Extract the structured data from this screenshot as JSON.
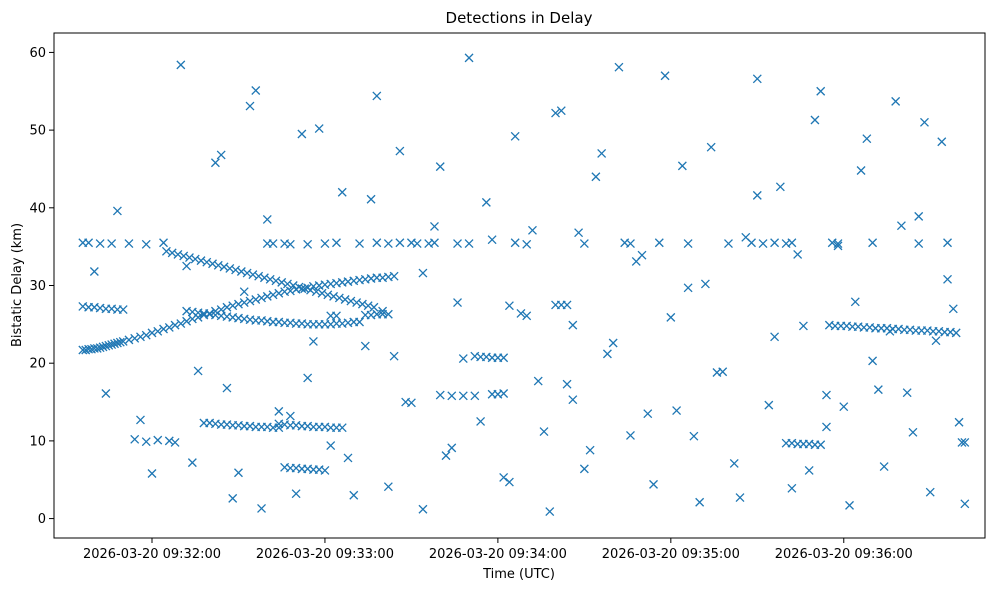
{
  "chart_data": {
    "type": "scatter",
    "title": "Detections in Delay",
    "xlabel": "Time (UTC)",
    "ylabel": "Bistatic Delay (km)",
    "x_ticks": [
      "2026-03-20 09:32:00",
      "2026-03-20 09:33:00",
      "2026-03-20 09:34:00",
      "2026-03-20 09:35:00",
      "2026-03-20 09:36:00"
    ],
    "y_ticks": [
      0,
      10,
      20,
      30,
      40,
      50,
      60
    ],
    "xlim": [
      "2026-03-20 09:31:26",
      "2026-03-20 09:36:49"
    ],
    "ylim": [
      -2.5,
      62.5
    ],
    "marker": "x",
    "color": "#1f77b4",
    "grid": false,
    "series": [
      {
        "name": "",
        "x": [
          "09:31:36",
          "09:31:37",
          "09:31:38",
          "09:31:39",
          "09:31:40",
          "09:31:41",
          "09:31:42",
          "09:31:43",
          "09:31:44",
          "09:31:45",
          "09:31:46",
          "09:31:47",
          "09:31:48",
          "09:31:49",
          "09:31:50",
          "09:31:52",
          "09:31:54",
          "09:31:56",
          "09:31:58",
          "09:32:00",
          "09:32:02",
          "09:32:04",
          "09:32:06",
          "09:32:08",
          "09:32:10",
          "09:32:12",
          "09:32:14",
          "09:32:16",
          "09:32:18",
          "09:32:20",
          "09:32:22",
          "09:32:24",
          "09:32:26",
          "09:32:28",
          "09:32:30",
          "09:32:32",
          "09:32:34",
          "09:32:36",
          "09:32:38",
          "09:32:40",
          "09:32:42",
          "09:32:44",
          "09:32:46",
          "09:32:48",
          "09:32:50",
          "09:32:52",
          "09:32:54",
          "09:32:56",
          "09:32:58",
          "09:33:00",
          "09:33:02",
          "09:33:04",
          "09:33:06",
          "09:33:08",
          "09:33:10",
          "09:33:12",
          "09:33:14",
          "09:33:16",
          "09:33:18",
          "09:33:20",
          "09:33:22",
          "09:33:24",
          "09:31:36",
          "09:31:38",
          "09:31:40",
          "09:31:42",
          "09:31:44",
          "09:31:46",
          "09:31:48",
          "09:31:50",
          "09:32:05",
          "09:32:07",
          "09:32:09",
          "09:32:11",
          "09:32:13",
          "09:32:15",
          "09:32:17",
          "09:32:19",
          "09:32:21",
          "09:32:23",
          "09:32:25",
          "09:32:27",
          "09:32:29",
          "09:32:31",
          "09:32:33",
          "09:32:35",
          "09:32:37",
          "09:32:39",
          "09:32:41",
          "09:32:43",
          "09:32:45",
          "09:32:47",
          "09:32:49",
          "09:32:51",
          "09:32:53",
          "09:32:55",
          "09:32:57",
          "09:32:59",
          "09:33:01",
          "09:33:03",
          "09:33:05",
          "09:33:07",
          "09:33:09",
          "09:33:11",
          "09:33:13",
          "09:33:15",
          "09:33:17",
          "09:32:12",
          "09:32:14",
          "09:32:16",
          "09:32:18",
          "09:32:20",
          "09:32:22",
          "09:32:24",
          "09:32:26",
          "09:32:28",
          "09:32:30",
          "09:32:32",
          "09:32:34",
          "09:32:36",
          "09:32:38",
          "09:32:40",
          "09:32:42",
          "09:32:44",
          "09:32:46",
          "09:32:48",
          "09:32:50",
          "09:32:52",
          "09:32:54",
          "09:32:56",
          "09:32:58",
          "09:33:00",
          "09:33:02",
          "09:33:04",
          "09:33:06",
          "09:33:08",
          "09:33:10",
          "09:33:12",
          "09:32:44",
          "09:32:46",
          "09:32:48",
          "09:32:50",
          "09:32:52",
          "09:32:54",
          "09:32:56",
          "09:32:58",
          "09:33:00",
          "09:33:02",
          "09:33:04",
          "09:33:06",
          "09:32:20",
          "09:32:22",
          "09:32:24",
          "09:32:26",
          "09:32:28",
          "09:32:30",
          "09:32:32",
          "09:32:34",
          "09:32:36",
          "09:32:38",
          "09:32:40",
          "09:32:42",
          "09:32:44",
          "09:32:46",
          "09:32:48",
          "09:32:50",
          "09:32:52",
          "09:32:54",
          "09:32:56",
          "09:32:58",
          "09:33:00",
          "09:33:02",
          "09:33:04",
          "09:33:14",
          "09:33:16",
          "09:33:18",
          "09:33:20",
          "09:33:22",
          "09:33:24",
          "09:33:52",
          "09:33:54",
          "09:33:56",
          "09:33:58",
          "09:34:00",
          "09:34:02",
          "09:34:04",
          "09:34:20",
          "09:34:22",
          "09:34:24",
          "09:34:26",
          "09:35:55",
          "09:35:57",
          "09:35:59",
          "09:36:01",
          "09:36:03",
          "09:36:05",
          "09:36:07",
          "09:36:09",
          "09:36:11",
          "09:36:13",
          "09:36:15",
          "09:36:17",
          "09:36:19",
          "09:36:21",
          "09:36:23",
          "09:36:25",
          "09:36:27",
          "09:36:29",
          "09:36:31",
          "09:36:33",
          "09:36:35",
          "09:36:37",
          "09:36:39",
          "09:36:41",
          "09:35:40",
          "09:35:42",
          "09:35:44",
          "09:35:46",
          "09:35:48",
          "09:35:50",
          "09:35:52",
          "09:35:54",
          "09:33:40",
          "09:33:44",
          "09:33:48",
          "09:33:52",
          "09:33:58",
          "09:34:00",
          "09:34:02",
          "09:34:06",
          "09:31:36",
          "09:31:38",
          "09:31:42",
          "09:31:46",
          "09:31:52",
          "09:31:58",
          "09:32:04",
          "09:32:40",
          "09:32:42",
          "09:32:46",
          "09:32:48",
          "09:32:54",
          "09:33:00",
          "09:33:04",
          "09:33:12",
          "09:33:18",
          "09:33:22",
          "09:33:26",
          "09:33:30",
          "09:33:32",
          "09:33:36",
          "09:33:38",
          "09:33:46",
          "09:33:50",
          "09:34:10",
          "09:34:30",
          "09:34:44",
          "09:34:46",
          "09:34:56",
          "09:35:06",
          "09:35:20",
          "09:35:28",
          "09:35:32",
          "09:35:36",
          "09:35:40",
          "09:35:42",
          "09:35:56",
          "09:35:58",
          "09:36:10",
          "09:36:26",
          "09:36:36",
          "09:36:42",
          "09:31:54",
          "09:31:58",
          "09:32:02",
          "09:32:06",
          "09:32:08",
          "09:32:10",
          "09:32:14",
          "09:32:18",
          "09:32:22",
          "09:32:26",
          "09:32:30",
          "09:32:34",
          "09:32:38",
          "09:32:44",
          "09:32:50",
          "09:32:54",
          "09:32:58",
          "09:33:02",
          "09:33:06",
          "09:33:10",
          "09:33:14",
          "09:33:18",
          "09:33:22",
          "09:33:26",
          "09:33:30",
          "09:33:34",
          "09:33:38",
          "09:33:42",
          "09:33:46",
          "09:33:50",
          "09:33:54",
          "09:33:58",
          "09:34:02",
          "09:34:06",
          "09:34:10",
          "09:34:14",
          "09:34:18",
          "09:34:22",
          "09:34:26",
          "09:34:30",
          "09:34:34",
          "09:34:38",
          "09:34:42",
          "09:34:46",
          "09:34:50",
          "09:34:54",
          "09:34:58",
          "09:35:02",
          "09:35:06",
          "09:35:10",
          "09:35:14",
          "09:35:18",
          "09:35:22",
          "09:35:26",
          "09:35:30",
          "09:35:34",
          "09:35:38",
          "09:35:42",
          "09:35:46",
          "09:35:50",
          "09:35:54",
          "09:35:58",
          "09:36:02",
          "09:36:06",
          "09:36:10",
          "09:36:14",
          "09:36:18",
          "09:36:22",
          "09:36:26",
          "09:36:30",
          "09:36:34",
          "09:36:38",
          "09:36:42",
          "09:31:40",
          "09:31:44",
          "09:31:48",
          "09:31:56",
          "09:32:00",
          "09:32:12",
          "09:32:16",
          "09:32:24",
          "09:32:28",
          "09:32:32",
          "09:32:36",
          "09:32:40",
          "09:32:48",
          "09:32:52",
          "09:32:56",
          "09:33:08",
          "09:33:16",
          "09:33:20",
          "09:33:28",
          "09:33:34",
          "09:33:40",
          "09:33:44",
          "09:33:48",
          "09:33:56",
          "09:34:04",
          "09:34:08",
          "09:34:12",
          "09:34:16",
          "09:34:20",
          "09:34:24",
          "09:34:28",
          "09:34:32",
          "09:34:36",
          "09:34:40",
          "09:34:48",
          "09:34:52",
          "09:35:00",
          "09:35:04",
          "09:35:08",
          "09:35:12",
          "09:35:16",
          "09:35:24",
          "09:35:30",
          "09:35:36",
          "09:35:44",
          "09:35:48",
          "09:35:52",
          "09:36:00",
          "09:36:04",
          "09:36:08",
          "09:36:12",
          "09:36:16",
          "09:36:20",
          "09:36:24",
          "09:36:28",
          "09:36:32",
          "09:36:36",
          "09:36:40"
        ],
        "y": [
          21.7,
          21.7,
          21.8,
          21.8,
          21.9,
          21.9,
          22.0,
          22.1,
          22.2,
          22.3,
          22.4,
          22.5,
          22.6,
          22.7,
          22.8,
          23.0,
          23.2,
          23.4,
          23.6,
          23.9,
          24.1,
          24.4,
          24.6,
          24.9,
          25.1,
          25.4,
          25.7,
          25.9,
          26.2,
          26.4,
          26.7,
          26.9,
          27.2,
          27.4,
          27.6,
          27.8,
          28.0,
          28.2,
          28.4,
          28.6,
          28.8,
          29.0,
          29.2,
          29.3,
          29.5,
          29.6,
          29.7,
          29.9,
          30.0,
          30.1,
          30.2,
          30.3,
          30.4,
          30.5,
          30.6,
          30.7,
          30.8,
          30.9,
          31.0,
          31.0,
          31.1,
          31.2,
          27.3,
          27.2,
          27.2,
          27.1,
          27.0,
          27.0,
          26.9,
          26.9,
          34.4,
          34.2,
          34.0,
          33.8,
          33.6,
          33.4,
          33.2,
          33.0,
          32.8,
          32.6,
          32.4,
          32.2,
          32.0,
          31.8,
          31.6,
          31.4,
          31.2,
          31.0,
          30.8,
          30.6,
          30.4,
          30.2,
          30.0,
          29.8,
          29.6,
          29.4,
          29.2,
          29.0,
          28.8,
          28.6,
          28.4,
          28.2,
          28.0,
          27.8,
          27.6,
          27.4,
          27.2,
          26.7,
          26.6,
          26.5,
          26.4,
          26.3,
          26.2,
          26.1,
          26.0,
          25.9,
          25.8,
          25.7,
          25.6,
          25.5,
          25.5,
          25.4,
          25.3,
          25.3,
          25.2,
          25.2,
          25.1,
          25.1,
          25.0,
          25.0,
          25.0,
          25.0,
          25.0,
          25.1,
          25.1,
          25.2,
          25.3,
          25.3,
          12.2,
          12.1,
          12.0,
          12.0,
          11.9,
          11.9,
          11.8,
          11.8,
          11.8,
          11.7,
          11.7,
          11.7,
          12.3,
          12.2,
          12.1,
          12.1,
          12.0,
          12.0,
          11.9,
          11.9,
          11.8,
          11.8,
          11.8,
          11.7,
          11.7,
          6.6,
          6.5,
          6.5,
          6.4,
          6.4,
          6.3,
          6.3,
          6.2,
          26.1,
          26.1,
          26.2,
          26.2,
          26.3,
          26.3,
          26.3,
          20.9,
          20.9,
          20.8,
          20.8,
          20.7,
          20.7,
          20.7,
          27.4,
          27.5,
          27.5,
          27.5,
          24.9,
          24.9,
          24.8,
          24.8,
          24.8,
          24.7,
          24.7,
          24.6,
          24.6,
          24.5,
          24.5,
          24.5,
          24.4,
          24.4,
          24.3,
          24.3,
          24.2,
          24.2,
          24.2,
          24.1,
          24.1,
          24.0,
          24.0,
          23.9,
          9.8,
          9.7,
          9.7,
          9.6,
          9.6,
          9.6,
          9.5,
          9.5,
          15.9,
          15.9,
          15.8,
          15.8,
          15.8,
          16.0,
          16.0,
          16.1,
          35.5,
          35.5,
          35.5,
          35.4,
          35.4,
          35.4,
          35.3,
          35.5,
          35.4,
          35.4,
          35.4,
          35.3,
          35.3,
          35.4,
          35.5,
          35.4,
          35.5,
          35.4,
          35.5,
          35.5,
          35.4,
          35.4,
          35.5,
          35.4,
          35.4,
          35.3,
          35.4,
          35.5,
          35.4,
          35.5,
          35.4,
          35.4,
          35.5,
          35.4,
          35.5,
          35.4,
          35.5,
          35.5,
          35.4,
          35.5,
          35.4,
          35.5,
          9.8,
          10.2,
          9.9,
          10.1,
          10.0,
          9.8,
          58.4,
          7.2,
          12.3,
          45.8,
          16.8,
          5.9,
          53.1,
          1.3,
          13.8,
          3.2,
          18.1,
          50.2,
          9.4,
          42.0,
          3.0,
          22.2,
          54.4,
          4.1,
          47.3,
          14.9,
          1.2,
          37.6,
          8.1,
          27.8,
          59.3,
          12.5,
          35.9,
          5.3,
          49.2,
          26.1,
          17.7,
          0.9,
          52.5,
          15.3,
          6.4,
          44.0,
          21.2,
          58.1,
          10.7,
          33.9,
          4.4,
          57.0,
          13.9,
          29.7,
          2.1,
          47.8,
          18.9,
          7.1,
          36.2,
          56.6,
          14.6,
          42.7,
          3.9,
          24.8,
          51.3,
          11.8,
          35.1,
          1.7,
          44.8,
          20.3,
          6.7,
          53.7,
          16.2,
          38.9,
          3.4,
          48.5,
          27.0,
          1.9,
          31.8,
          16.1,
          39.6,
          12.7,
          5.8,
          32.5,
          19.0,
          46.8,
          2.6,
          29.2,
          55.1,
          38.5,
          13.2,
          49.5,
          22.8,
          7.8,
          41.1,
          26.7,
          15.0,
          31.6,
          45.3,
          9.1,
          20.6,
          40.7,
          4.7,
          26.4,
          37.1,
          11.2,
          52.2,
          17.3,
          36.8,
          8.8,
          47.0,
          22.6,
          33.1,
          13.5,
          25.9,
          45.4,
          10.6,
          30.2,
          18.8,
          2.7,
          41.6,
          23.4,
          34.0,
          6.2,
          55.0,
          14.4,
          27.9,
          48.9,
          16.6,
          24.1,
          37.7,
          11.1,
          51.0,
          22.9,
          30.8,
          12.4
        ]
      }
    ]
  }
}
